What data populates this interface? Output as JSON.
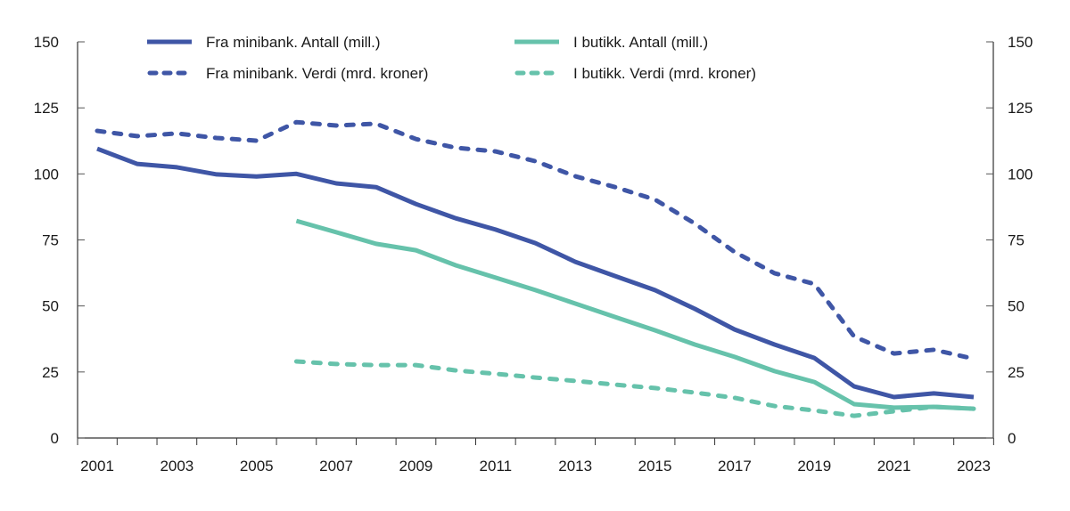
{
  "chart_data": {
    "type": "line",
    "x": [
      2001,
      2002,
      2003,
      2004,
      2005,
      2006,
      2007,
      2008,
      2009,
      2010,
      2011,
      2012,
      2013,
      2014,
      2015,
      2016,
      2017,
      2018,
      2019,
      2020,
      2021,
      2022,
      2023
    ],
    "x_tick_labels": [
      "2001",
      "2003",
      "2005",
      "2007",
      "2009",
      "2011",
      "2013",
      "2015",
      "2017",
      "2019",
      "2021",
      "2023"
    ],
    "y_tick_labels": [
      "0",
      "25",
      "50",
      "75",
      "100",
      "125",
      "150"
    ],
    "ylim": [
      0,
      150
    ],
    "y_right_axis": true,
    "grid": false,
    "legend_placement": "top",
    "series": [
      {
        "name": "Fra minibank. Antall (mill.)",
        "color": "#3f56a6",
        "dashed": false,
        "values": [
          109.5,
          103.8,
          102.5,
          99.8,
          99,
          100,
          96.4,
          95,
          88.6,
          83.2,
          78.9,
          73.8,
          66.7,
          61.3,
          56,
          48.9,
          41.1,
          35.4,
          30.3,
          19.5,
          15.5,
          16.9,
          15.5
        ]
      },
      {
        "name": "Fra minibank. Verdi (mrd. kroner)",
        "color": "#3f56a6",
        "dashed": true,
        "values": [
          116.3,
          114.3,
          115.3,
          113.6,
          112.6,
          119.6,
          118.3,
          119,
          113.2,
          109.9,
          108.5,
          104.8,
          99.1,
          95,
          90.3,
          81.2,
          70.4,
          62.4,
          58.3,
          38.4,
          32,
          33.4,
          30
        ]
      },
      {
        "name": "I butikk. Antall (mill.)",
        "color": "#66c2ab",
        "dashed": false,
        "values": [
          null,
          null,
          null,
          null,
          null,
          82.2,
          77.9,
          73.5,
          71.1,
          65.4,
          60.7,
          56,
          50.9,
          45.8,
          40.8,
          35.4,
          30.7,
          25.3,
          21.2,
          12.8,
          11.5,
          11.8,
          11.1
        ]
      },
      {
        "name": "I butikk. Verdi (mrd. kroner)",
        "color": "#66c2ab",
        "dashed": true,
        "values": [
          null,
          null,
          null,
          null,
          null,
          29,
          28,
          27.6,
          27.6,
          25.6,
          24.3,
          22.9,
          21.6,
          20.2,
          18.9,
          17.2,
          15.2,
          12.1,
          10.4,
          8.4,
          10.1,
          11.8,
          11.1
        ]
      }
    ]
  }
}
